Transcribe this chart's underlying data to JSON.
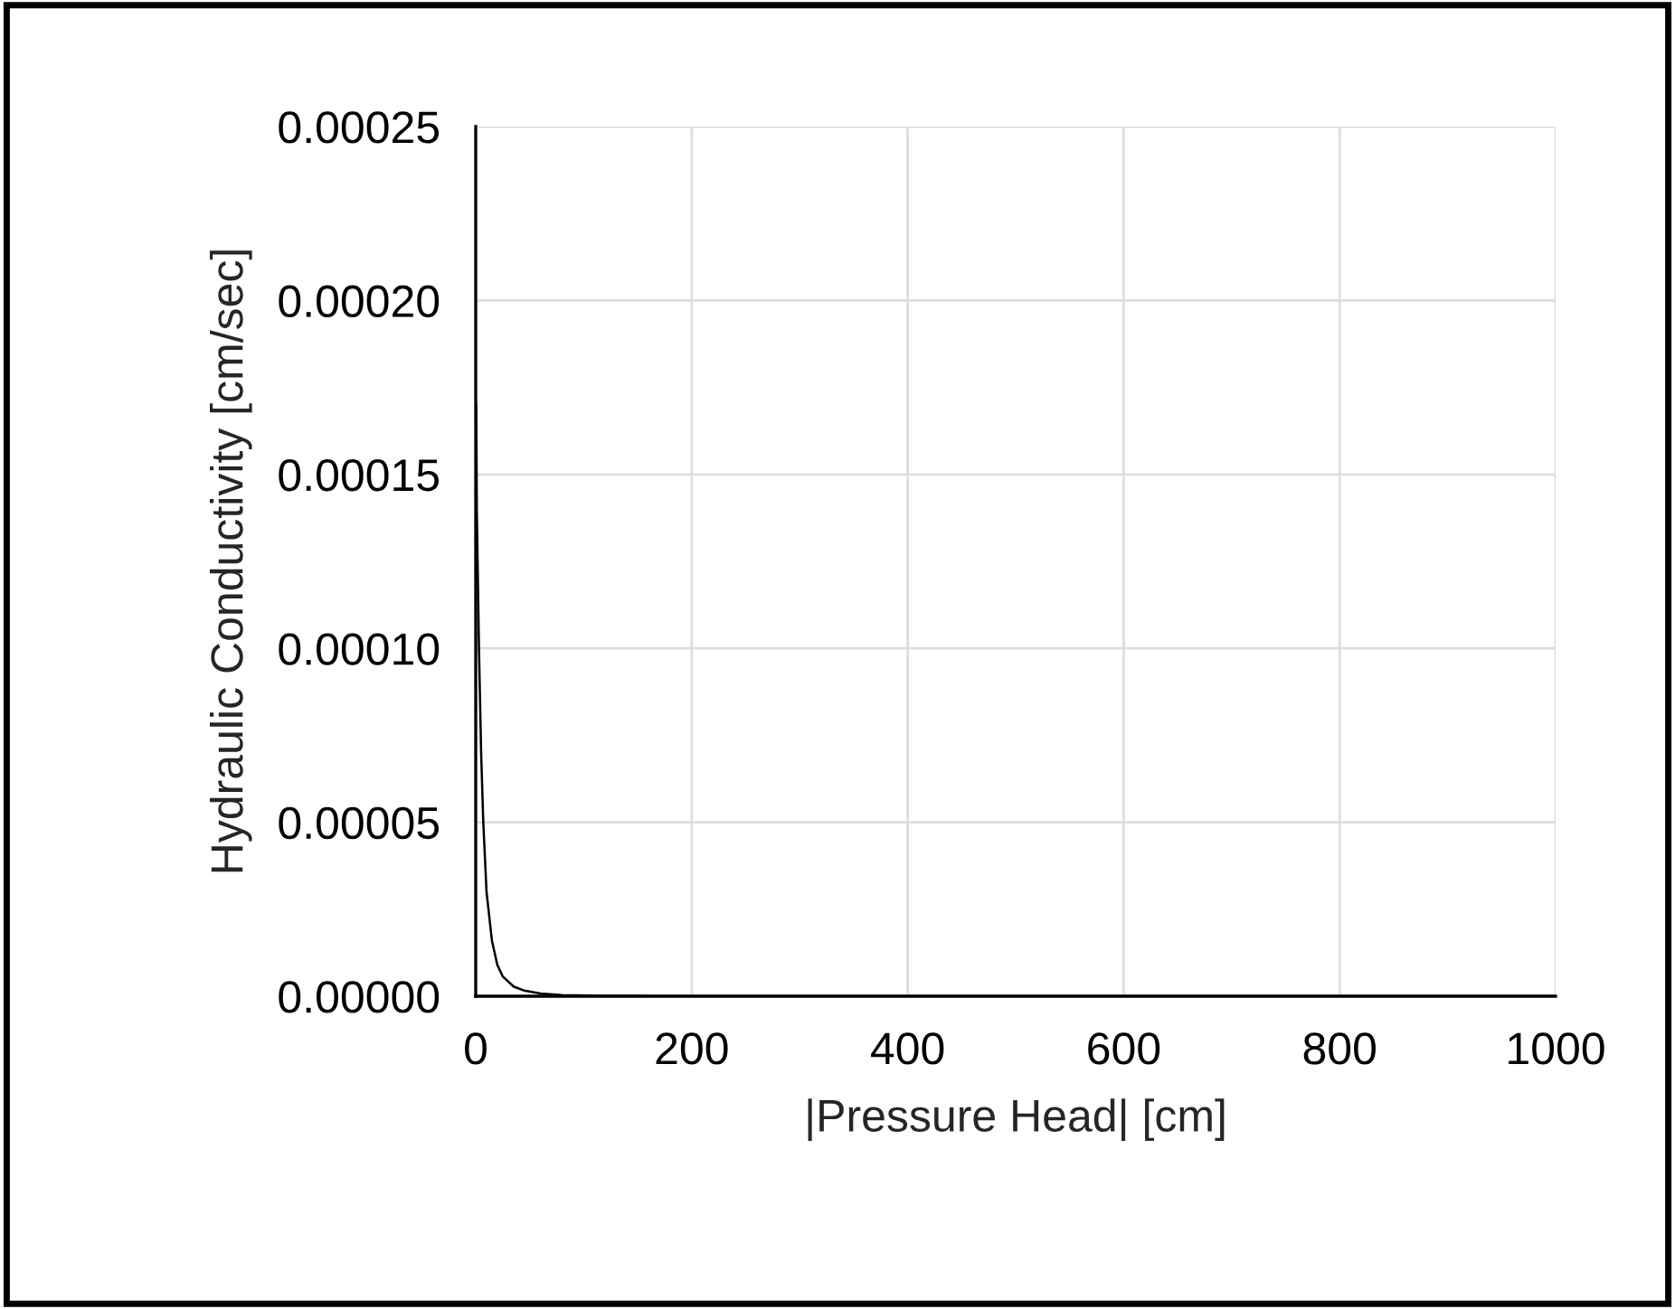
{
  "chart_data": {
    "type": "line",
    "xlabel": "|Pressure Head| [cm]",
    "ylabel": "Hydraulic Conductivity [cm/sec]",
    "x": [
      0.5,
      1,
      2,
      3,
      5,
      7,
      10,
      15,
      20,
      25,
      35,
      45,
      60,
      80,
      120,
      200,
      400,
      1000
    ],
    "series": [
      {
        "color": "#000000",
        "values": [
          0.00017,
          0.00014,
          0.00012,
          0.0001,
          7e-05,
          5e-05,
          3e-05,
          1.6e-05,
          9e-06,
          5.7e-06,
          2.8e-06,
          1.6e-06,
          8e-07,
          3e-07,
          1e-07,
          2e-08,
          0.0,
          0.0
        ]
      }
    ],
    "xlim": [
      0,
      1000
    ],
    "ylim": [
      0,
      0.00025
    ],
    "xticks": [
      0,
      200,
      400,
      600,
      800,
      1000
    ],
    "yticks": [
      {
        "value": 0,
        "label": "0.00000"
      },
      {
        "value": 5e-05,
        "label": "0.00005"
      },
      {
        "value": 0.0001,
        "label": "0.00010"
      },
      {
        "value": 0.00015,
        "label": "0.00015"
      },
      {
        "value": 0.0002,
        "label": "0.00020"
      },
      {
        "value": 0.00025,
        "label": "0.00025"
      }
    ],
    "grid": true,
    "legend": false,
    "marker": "none",
    "line_style": "solid"
  }
}
